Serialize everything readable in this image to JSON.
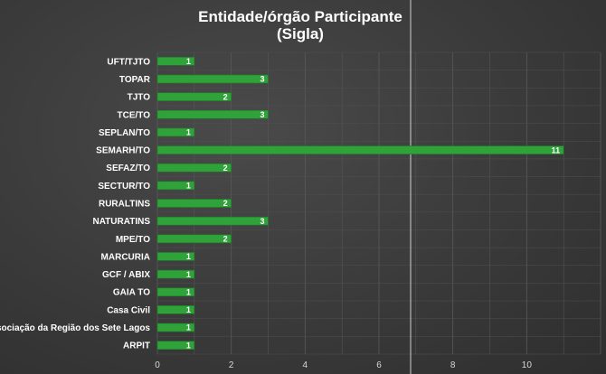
{
  "chart_data": {
    "type": "bar",
    "orientation": "horizontal",
    "title_lines": [
      "Entidade/órgão Participante",
      "(Sigla)"
    ],
    "categories": [
      "UFT/TJTO",
      "TOPAR",
      "TJTO",
      "TCE/TO",
      "SEPLAN/TO",
      "SEMARH/TO",
      "SEFAZ/TO",
      "SECTUR/TO",
      "RURALTINS",
      "NATURATINS",
      "MPE/TO",
      "MARCURIA",
      "GCF / ABIX",
      "GAIA TO",
      "Casa Civil",
      "Associação da Região dos Sete Lagos",
      "ARPIT"
    ],
    "values": [
      1,
      3,
      2,
      3,
      1,
      11,
      2,
      1,
      2,
      3,
      2,
      1,
      1,
      1,
      1,
      1,
      1
    ],
    "data_labels": [
      "1",
      "3",
      "2",
      "3",
      "1",
      "11",
      "2",
      "1",
      "2",
      "3",
      "2",
      "1",
      "1",
      "1",
      "1",
      "1",
      "1"
    ],
    "xticks": [
      "0",
      "2",
      "4",
      "6",
      "8",
      "10"
    ],
    "xlim": [
      0,
      12
    ],
    "grid": true,
    "colors": {
      "bar": "#2fa23a",
      "bar_edge": "#1f7a28",
      "grid": "#5a5a5a",
      "text": "#ffffff"
    }
  }
}
